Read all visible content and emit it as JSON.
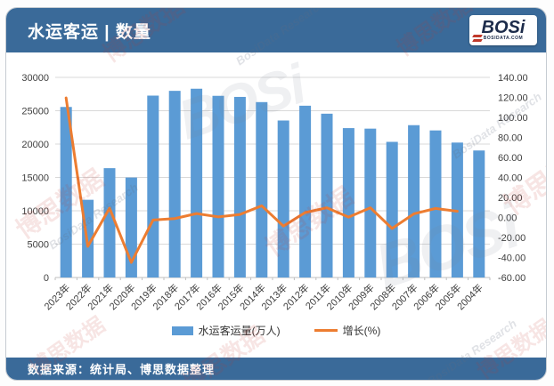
{
  "header": {
    "title": "水运客运 | 数量",
    "logo_text": "BOSi",
    "logo_subtext": "BOSIDATA.COM"
  },
  "footer": {
    "source": "数据来源：统计局、博思数据整理"
  },
  "watermarks": {
    "cn": "博思数据",
    "en": "BosiData Research",
    "logo": "BOSi"
  },
  "colors": {
    "header_bg": "#3a6a99",
    "bar": "#5b9bd5",
    "line": "#ed7d31",
    "gridline": "#d9d9d9",
    "axis_text": "#404040",
    "logo_navy": "#1c2b4a",
    "logo_red": "#c0392b"
  },
  "chart_data": {
    "type": "bar",
    "categories": [
      "2023年",
      "2022年",
      "2021年",
      "2020年",
      "2019年",
      "2018年",
      "2017年",
      "2016年",
      "2015年",
      "2014年",
      "2013年",
      "2012年",
      "2011年",
      "2010年",
      "2009年",
      "2008年",
      "2007年",
      "2006年",
      "2005年",
      "2004年"
    ],
    "series": [
      {
        "name": "水运客运量(万人)",
        "type": "bar",
        "axis": "left",
        "color": "#5b9bd5",
        "values": [
          25565,
          11649,
          16387,
          14987,
          27267,
          27981,
          28300,
          27234,
          27072,
          26293,
          23535,
          25752,
          24556,
          22392,
          22314,
          20334,
          22835,
          22047,
          20227,
          19040
        ]
      },
      {
        "name": "增长(%)",
        "type": "line",
        "axis": "right",
        "color": "#ed7d31",
        "values": [
          119.5,
          -28.9,
          9.3,
          -45.0,
          -2.6,
          -1.1,
          3.9,
          0.6,
          3.0,
          11.7,
          -8.6,
          4.9,
          9.7,
          0.3,
          9.7,
          -11.0,
          3.6,
          9.0,
          6.2,
          null
        ]
      }
    ],
    "title": "水运客运 | 数量",
    "xlabel": "",
    "ylabel_left": "水运客运量(万人)",
    "ylabel_right": "增长(%)",
    "left_axis": {
      "min": 0,
      "max": 30000,
      "step": 5000,
      "decimals": 0
    },
    "right_axis": {
      "min": -60,
      "max": 140,
      "step": 20,
      "decimals": 2
    },
    "grid": true,
    "legend_position": "bottom"
  }
}
